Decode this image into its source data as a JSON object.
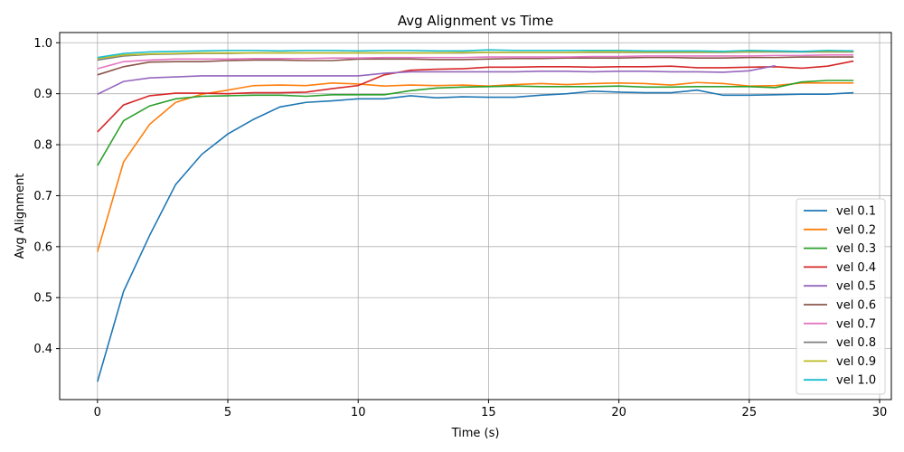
{
  "chart_data": {
    "type": "line",
    "title": "Avg Alignment vs Time",
    "xlabel": "Time (s)",
    "ylabel": "Avg Alignment",
    "xlim": [
      -1.45,
      30.45
    ],
    "ylim": [
      0.3,
      1.02
    ],
    "xticks": [
      0,
      5,
      10,
      15,
      20,
      25,
      30
    ],
    "yticks": [
      0.4,
      0.5,
      0.6,
      0.7,
      0.8,
      0.9,
      1.0
    ],
    "xtick_labels": [
      "0",
      "5",
      "10",
      "15",
      "20",
      "25",
      "30"
    ],
    "ytick_labels": [
      "0.4",
      "0.5",
      "0.6",
      "0.7",
      "0.8",
      "0.9",
      "1.0"
    ],
    "grid": true,
    "legend_position": "bottom-right",
    "x": [
      0,
      1,
      2,
      3,
      4,
      5,
      6,
      7,
      8,
      9,
      10,
      11,
      12,
      13,
      14,
      15,
      16,
      17,
      18,
      19,
      20,
      21,
      22,
      23,
      24,
      25,
      26,
      27,
      28,
      29
    ],
    "series": [
      {
        "name": "vel 0.1",
        "color": "#1f77b4",
        "values": [
          0.335,
          0.512,
          0.622,
          0.722,
          0.781,
          0.821,
          0.85,
          0.874,
          0.883,
          0.886,
          0.89,
          0.89,
          0.896,
          0.892,
          0.894,
          0.893,
          0.893,
          0.897,
          0.9,
          0.905,
          0.903,
          0.902,
          0.902,
          0.907,
          0.897,
          0.897,
          0.898,
          0.899,
          0.899,
          0.902
        ]
      },
      {
        "name": "vel 0.2",
        "color": "#ff7f0e",
        "values": [
          0.59,
          0.766,
          0.84,
          0.883,
          0.899,
          0.907,
          0.916,
          0.917,
          0.916,
          0.921,
          0.919,
          0.915,
          0.917,
          0.916,
          0.917,
          0.915,
          0.918,
          0.92,
          0.918,
          0.92,
          0.921,
          0.92,
          0.917,
          0.922,
          0.92,
          0.915,
          0.916,
          0.921,
          0.921,
          0.921
        ]
      },
      {
        "name": "vel 0.3",
        "color": "#2ca02c",
        "values": [
          0.759,
          0.847,
          0.876,
          0.89,
          0.895,
          0.896,
          0.897,
          0.897,
          0.895,
          0.898,
          0.898,
          0.898,
          0.906,
          0.911,
          0.913,
          0.914,
          0.915,
          0.914,
          0.914,
          0.914,
          0.915,
          0.913,
          0.913,
          0.914,
          0.914,
          0.914,
          0.912,
          0.923,
          0.926,
          0.926
        ]
      },
      {
        "name": "vel 0.4",
        "color": "#d62728",
        "values": [
          0.825,
          0.878,
          0.896,
          0.901,
          0.901,
          0.9,
          0.902,
          0.902,
          0.903,
          0.91,
          0.916,
          0.937,
          0.946,
          0.948,
          0.949,
          0.952,
          0.952,
          0.953,
          0.953,
          0.952,
          0.953,
          0.953,
          0.954,
          0.951,
          0.951,
          0.952,
          0.953,
          0.95,
          0.954,
          0.964
        ]
      },
      {
        "name": "vel 0.5",
        "color": "#9467bd",
        "values": [
          0.899,
          0.924,
          0.931,
          0.933,
          0.935,
          0.935,
          0.935,
          0.935,
          0.935,
          0.935,
          0.935,
          0.94,
          0.943,
          0.943,
          0.943,
          0.943,
          0.943,
          0.944,
          0.944,
          0.943,
          0.944,
          0.944,
          0.943,
          0.943,
          0.942,
          0.945,
          0.955,
          null,
          null,
          null
        ]
      },
      {
        "name": "vel 0.6",
        "color": "#8c564b",
        "values": [
          0.937,
          0.953,
          0.962,
          0.963,
          0.963,
          0.965,
          0.966,
          0.966,
          0.965,
          0.965,
          0.968,
          0.968,
          0.968,
          0.967,
          0.967,
          0.968,
          0.969,
          0.969,
          0.97,
          0.97,
          0.97,
          0.971,
          0.971,
          0.97,
          0.97,
          0.971,
          0.971,
          0.972,
          0.972,
          0.972
        ]
      },
      {
        "name": "vel 0.7",
        "color": "#e377c2",
        "values": [
          0.949,
          0.963,
          0.966,
          0.968,
          0.968,
          0.968,
          0.969,
          0.969,
          0.969,
          0.97,
          0.97,
          0.971,
          0.971,
          0.971,
          0.971,
          0.972,
          0.972,
          0.972,
          0.972,
          0.973,
          0.973,
          0.974,
          0.974,
          0.974,
          0.974,
          0.974,
          0.975,
          0.975,
          0.976,
          0.976
        ]
      },
      {
        "name": "vel 0.8",
        "color": "#7f7f7f",
        "values": [
          0.966,
          0.974,
          0.977,
          0.978,
          0.979,
          0.979,
          0.98,
          0.98,
          0.98,
          0.98,
          0.98,
          0.98,
          0.98,
          0.98,
          0.98,
          0.981,
          0.981,
          0.981,
          0.981,
          0.981,
          0.981,
          0.981,
          0.981,
          0.981,
          0.981,
          0.982,
          0.982,
          0.982,
          0.982,
          0.982
        ]
      },
      {
        "name": "vel 0.9",
        "color": "#bcbd22",
        "values": [
          0.969,
          0.976,
          0.978,
          0.979,
          0.98,
          0.98,
          0.98,
          0.98,
          0.98,
          0.98,
          0.98,
          0.98,
          0.98,
          0.98,
          0.981,
          0.981,
          0.981,
          0.981,
          0.981,
          0.982,
          0.982,
          0.982,
          0.982,
          0.982,
          0.982,
          0.983,
          0.983,
          0.983,
          0.983,
          0.983
        ]
      },
      {
        "name": "vel 1.0",
        "color": "#17becf",
        "values": [
          0.971,
          0.979,
          0.982,
          0.983,
          0.984,
          0.985,
          0.985,
          0.984,
          0.985,
          0.985,
          0.984,
          0.985,
          0.985,
          0.984,
          0.984,
          0.986,
          0.985,
          0.985,
          0.985,
          0.985,
          0.985,
          0.984,
          0.984,
          0.984,
          0.983,
          0.985,
          0.984,
          0.983,
          0.985,
          0.984
        ]
      }
    ]
  }
}
